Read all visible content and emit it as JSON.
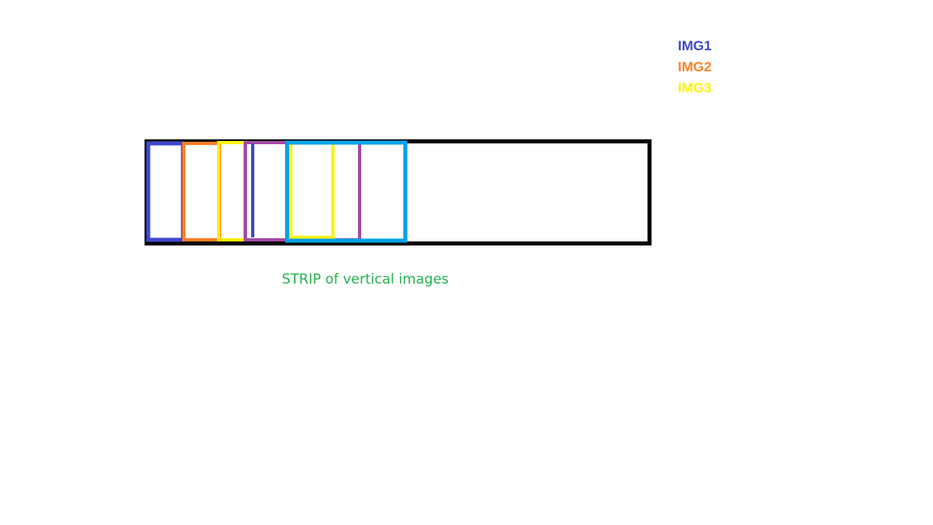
{
  "legend": {
    "items": [
      {
        "label": "IMG1",
        "color": "#3f48cc"
      },
      {
        "label": "IMG2",
        "color": "#ff7f27"
      },
      {
        "label": "IMG3",
        "color": "#fff200"
      }
    ]
  },
  "caption": {
    "text": "STRIP of vertical images",
    "color": "#22b14c"
  },
  "colors": {
    "strip": "#000000",
    "img1": "#3f48cc",
    "img2": "#ff7f27",
    "img3": "#fff200",
    "img4": "#a349a4",
    "img5": "#00a2e8"
  }
}
